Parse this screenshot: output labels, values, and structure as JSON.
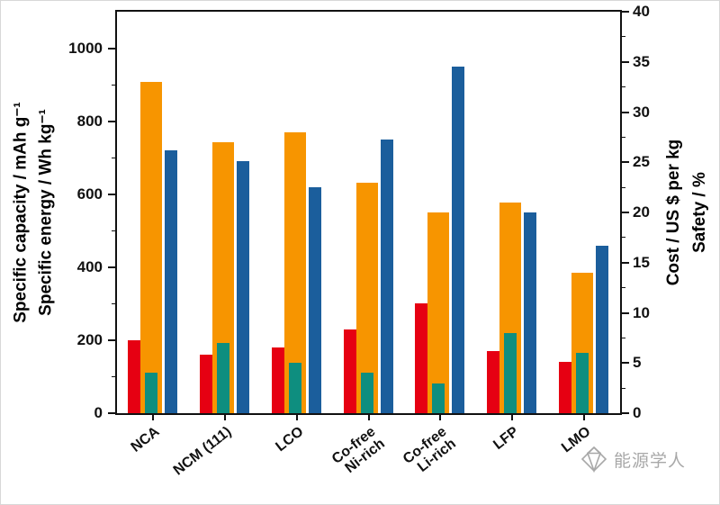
{
  "chart_data": {
    "type": "bar",
    "title": "",
    "categories": [
      "NCA",
      "NCM (111)",
      "LCO",
      "Co-free\nNi-rich",
      "Co-free\nLi-rich",
      "LFP",
      "LMO"
    ],
    "series": [
      {
        "name": "specific-capacity",
        "axis": "left",
        "color_key": "capacity",
        "values": [
          200,
          160,
          180,
          230,
          300,
          170,
          140
        ]
      },
      {
        "name": "cost",
        "axis": "right",
        "color_key": "cost",
        "values": [
          33,
          27,
          28,
          23,
          20,
          21,
          14
        ]
      },
      {
        "name": "safety",
        "axis": "right",
        "color_key": "safety",
        "values": [
          4,
          7,
          5,
          4,
          3,
          8,
          6
        ]
      },
      {
        "name": "specific-energy",
        "axis": "left",
        "color_key": "energy",
        "values": [
          720,
          690,
          620,
          750,
          950,
          550,
          460
        ]
      }
    ],
    "left_axis": {
      "label_capacity": "Specific capacity / mAh g⁻¹",
      "label_energy": "Specific energy / Wh kg⁻¹",
      "min": 0,
      "max": 1100,
      "ticks": [
        0,
        200,
        400,
        600,
        800,
        1000
      ],
      "minor_step": 100
    },
    "right_axis": {
      "label_cost": "Cost / US $ per kg",
      "label_safety": "Safety / %",
      "min": 0,
      "max": 40,
      "ticks": [
        0,
        5,
        10,
        15,
        20,
        25,
        30,
        35,
        40
      ],
      "minor_step": 2.5
    },
    "colors": {
      "capacity": "#e60012",
      "cost": "#f79500",
      "safety": "#0e8e7f",
      "energy": "#1b5e9c"
    },
    "grid": false,
    "legend": "none"
  },
  "watermark": {
    "text": "能源学人"
  }
}
